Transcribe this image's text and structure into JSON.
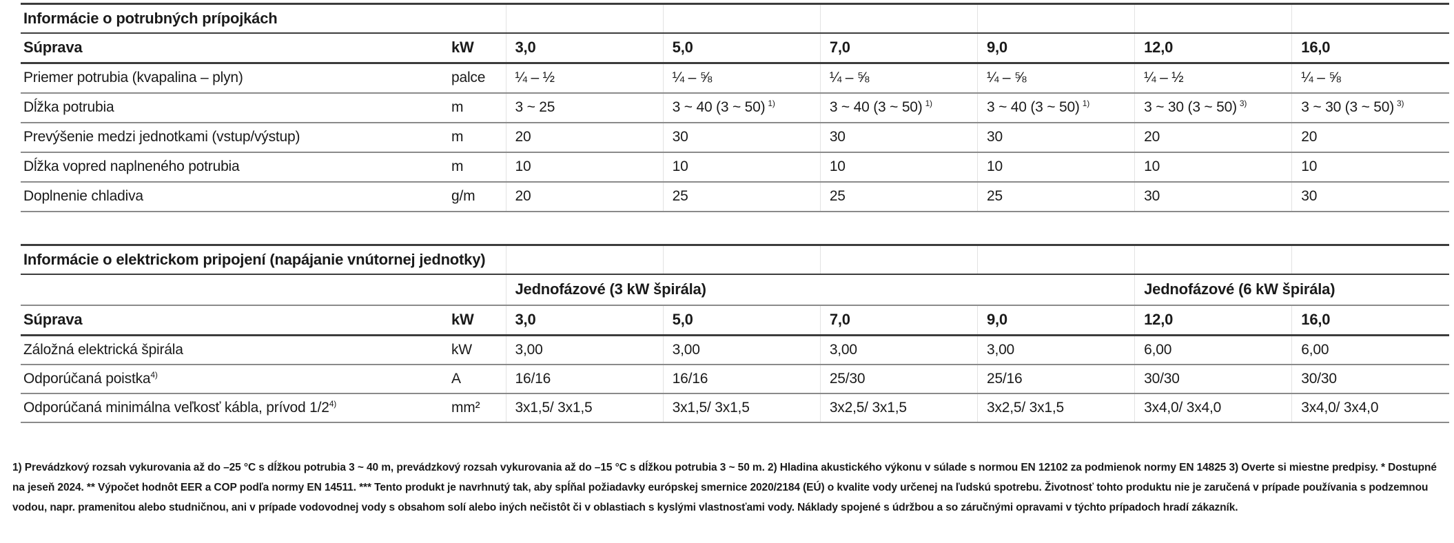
{
  "table1": {
    "title": "Informácie o potrubných prípojkách",
    "header": {
      "label": "Súprava",
      "unit": "kW",
      "columns": [
        "3,0",
        "5,0",
        "7,0",
        "9,0",
        "12,0",
        "16,0"
      ]
    },
    "rows": [
      {
        "label": "Priemer potrubia (kvapalina – plyn)",
        "unit": "palce",
        "values": [
          {
            "m": "¼ – ½"
          },
          {
            "m": "¼ – ⅝"
          },
          {
            "m": "¼ – ⅝"
          },
          {
            "m": "¼ – ⅝"
          },
          {
            "m": "¼ – ½"
          },
          {
            "m": "¼ – ⅝"
          }
        ]
      },
      {
        "label": "Dĺžka potrubia",
        "unit": "m",
        "values": [
          {
            "m": "3 ~ 25"
          },
          {
            "m": "3 ~ 40 (3 ~ 50)",
            "s": "1)"
          },
          {
            "m": "3 ~ 40 (3 ~ 50)",
            "s": "1)"
          },
          {
            "m": "3 ~ 40 (3 ~ 50)",
            "s": "1)"
          },
          {
            "m": "3 ~ 30 (3 ~ 50)",
            "s": "3)"
          },
          {
            "m": "3 ~ 30 (3 ~ 50)",
            "s": "3)"
          }
        ]
      },
      {
        "label": "Prevýšenie medzi jednotkami (vstup/výstup)",
        "unit": "m",
        "values": [
          {
            "m": "20"
          },
          {
            "m": "30"
          },
          {
            "m": "30"
          },
          {
            "m": "30"
          },
          {
            "m": "20"
          },
          {
            "m": "20"
          }
        ]
      },
      {
        "label": "Dĺžka vopred naplneného potrubia",
        "unit": "m",
        "values": [
          {
            "m": "10"
          },
          {
            "m": "10"
          },
          {
            "m": "10"
          },
          {
            "m": "10"
          },
          {
            "m": "10"
          },
          {
            "m": "10"
          }
        ]
      },
      {
        "label": "Doplnenie chladiva",
        "unit": "g/m",
        "values": [
          {
            "m": "20"
          },
          {
            "m": "25"
          },
          {
            "m": "25"
          },
          {
            "m": "25"
          },
          {
            "m": "30"
          },
          {
            "m": "30"
          }
        ]
      }
    ]
  },
  "table2": {
    "title": "Informácie o elektrickom pripojení (napájanie vnútornej jednotky)",
    "groups": [
      {
        "label": "Jednofázové (3 kW špirála)",
        "span": 4
      },
      {
        "label": "Jednofázové (6 kW špirála)",
        "span": 2
      }
    ],
    "header": {
      "label": "Súprava",
      "unit": "kW",
      "columns": [
        "3,0",
        "5,0",
        "7,0",
        "9,0",
        "12,0",
        "16,0"
      ]
    },
    "rows": [
      {
        "label": "Záložná elektrická špirála",
        "unit": "kW",
        "values": [
          {
            "m": "3,00"
          },
          {
            "m": "3,00"
          },
          {
            "m": "3,00"
          },
          {
            "m": "3,00"
          },
          {
            "m": "6,00"
          },
          {
            "m": "6,00"
          }
        ]
      },
      {
        "label": "Odporúčaná poistka",
        "label_sup": "4)",
        "unit": "A",
        "values": [
          {
            "m": "16/16"
          },
          {
            "m": "16/16"
          },
          {
            "m": "25/30"
          },
          {
            "m": "25/16"
          },
          {
            "m": "30/30"
          },
          {
            "m": "30/30"
          }
        ]
      },
      {
        "label": "Odporúčaná minimálna veľkosť kábla, prívod 1/2",
        "label_sup": "4)",
        "unit": "mm²",
        "values": [
          {
            "m": "3x1,5/ 3x1,5"
          },
          {
            "m": "3x1,5/ 3x1,5"
          },
          {
            "m": "3x2,5/ 3x1,5"
          },
          {
            "m": "3x2,5/ 3x1,5"
          },
          {
            "m": "3x4,0/ 3x4,0"
          },
          {
            "m": "3x4,0/ 3x4,0"
          }
        ]
      }
    ]
  },
  "footnote": "1) Prevádzkový rozsah vykurovania až do –25 °C s dĺžkou potrubia 3 ~ 40 m, prevádzkový rozsah vykurovania až do –15 °C s dĺžkou potrubia 3 ~ 50 m. 2) Hladina akustického výkonu v súlade s normou EN 12102 za podmienok normy EN 14825 3) Overte si miestne predpisy. * Dostupné na jeseň 2024. ** Výpočet hodnôt EER a COP podľa normy EN 14511. *** Tento produkt je navrhnutý tak, aby spĺňal požiadavky európskej smernice 2020/2184 (EÚ) o kvalite vody určenej na ľudskú spotrebu. Životnosť tohto produktu nie je zaručená v prípade používania s podzemnou vodou, napr. pramenitou alebo studničnou, ani v prípade vodovodnej vody s obsahom solí alebo iných nečistôt či v oblastiach s kyslými vlastnosťami vody. Náklady spojené s údržbou a so záručnými opravami v týchto prípadoch hradí zákazník.",
  "colors": {
    "text": "#1a1a1a",
    "rule_dark": "#3c3c3c",
    "rule_mid": "#8a8a8a",
    "rule_light": "#e2e2e2",
    "background": "#ffffff"
  }
}
